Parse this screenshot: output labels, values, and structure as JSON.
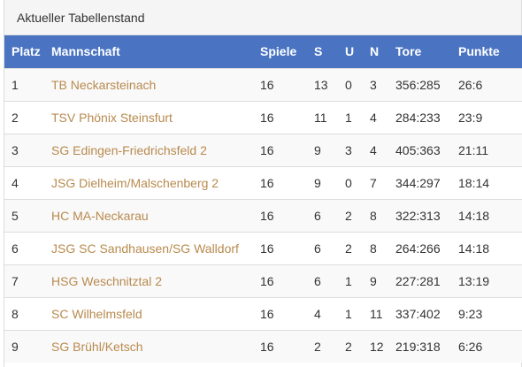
{
  "panel": {
    "title": "Aktueller Tabellenstand"
  },
  "table": {
    "headers": {
      "platz": "Platz",
      "mannschaft": "Mannschaft",
      "spiele": "Spiele",
      "s": "S",
      "u": "U",
      "n": "N",
      "tore": "Tore",
      "punkte": "Punkte"
    },
    "rows": [
      {
        "platz": "1",
        "mannschaft": "TB Neckarsteinach",
        "spiele": "16",
        "s": "13",
        "u": "0",
        "n": "3",
        "tore": "356:285",
        "punkte": "26:6"
      },
      {
        "platz": "2",
        "mannschaft": "TSV Phönix Steinsfurt",
        "spiele": "16",
        "s": "11",
        "u": "1",
        "n": "4",
        "tore": "284:233",
        "punkte": "23:9"
      },
      {
        "platz": "3",
        "mannschaft": "SG Edingen-Friedrichsfeld 2",
        "spiele": "16",
        "s": "9",
        "u": "3",
        "n": "4",
        "tore": "405:363",
        "punkte": "21:11"
      },
      {
        "platz": "4",
        "mannschaft": "JSG Dielheim/Malschenberg 2",
        "spiele": "16",
        "s": "9",
        "u": "0",
        "n": "7",
        "tore": "344:297",
        "punkte": "18:14"
      },
      {
        "platz": "5",
        "mannschaft": "HC MA-Neckarau",
        "spiele": "16",
        "s": "6",
        "u": "2",
        "n": "8",
        "tore": "322:313",
        "punkte": "14:18"
      },
      {
        "platz": "6",
        "mannschaft": "JSG SC Sandhausen/SG Walldorf",
        "spiele": "16",
        "s": "6",
        "u": "2",
        "n": "8",
        "tore": "264:266",
        "punkte": "14:18"
      },
      {
        "platz": "7",
        "mannschaft": "HSG Weschnitztal 2",
        "spiele": "16",
        "s": "6",
        "u": "1",
        "n": "9",
        "tore": "227:281",
        "punkte": "13:19"
      },
      {
        "platz": "8",
        "mannschaft": "SC Wilhelmsfeld",
        "spiele": "16",
        "s": "4",
        "u": "1",
        "n": "11",
        "tore": "337:402",
        "punkte": "9:23"
      },
      {
        "platz": "9",
        "mannschaft": "SG Brühl/Ketsch",
        "spiele": "16",
        "s": "2",
        "u": "2",
        "n": "12",
        "tore": "219:318",
        "punkte": "6:26"
      }
    ]
  },
  "colors": {
    "header_bg": "#4a74c2",
    "team_link": "#b88a4e"
  }
}
